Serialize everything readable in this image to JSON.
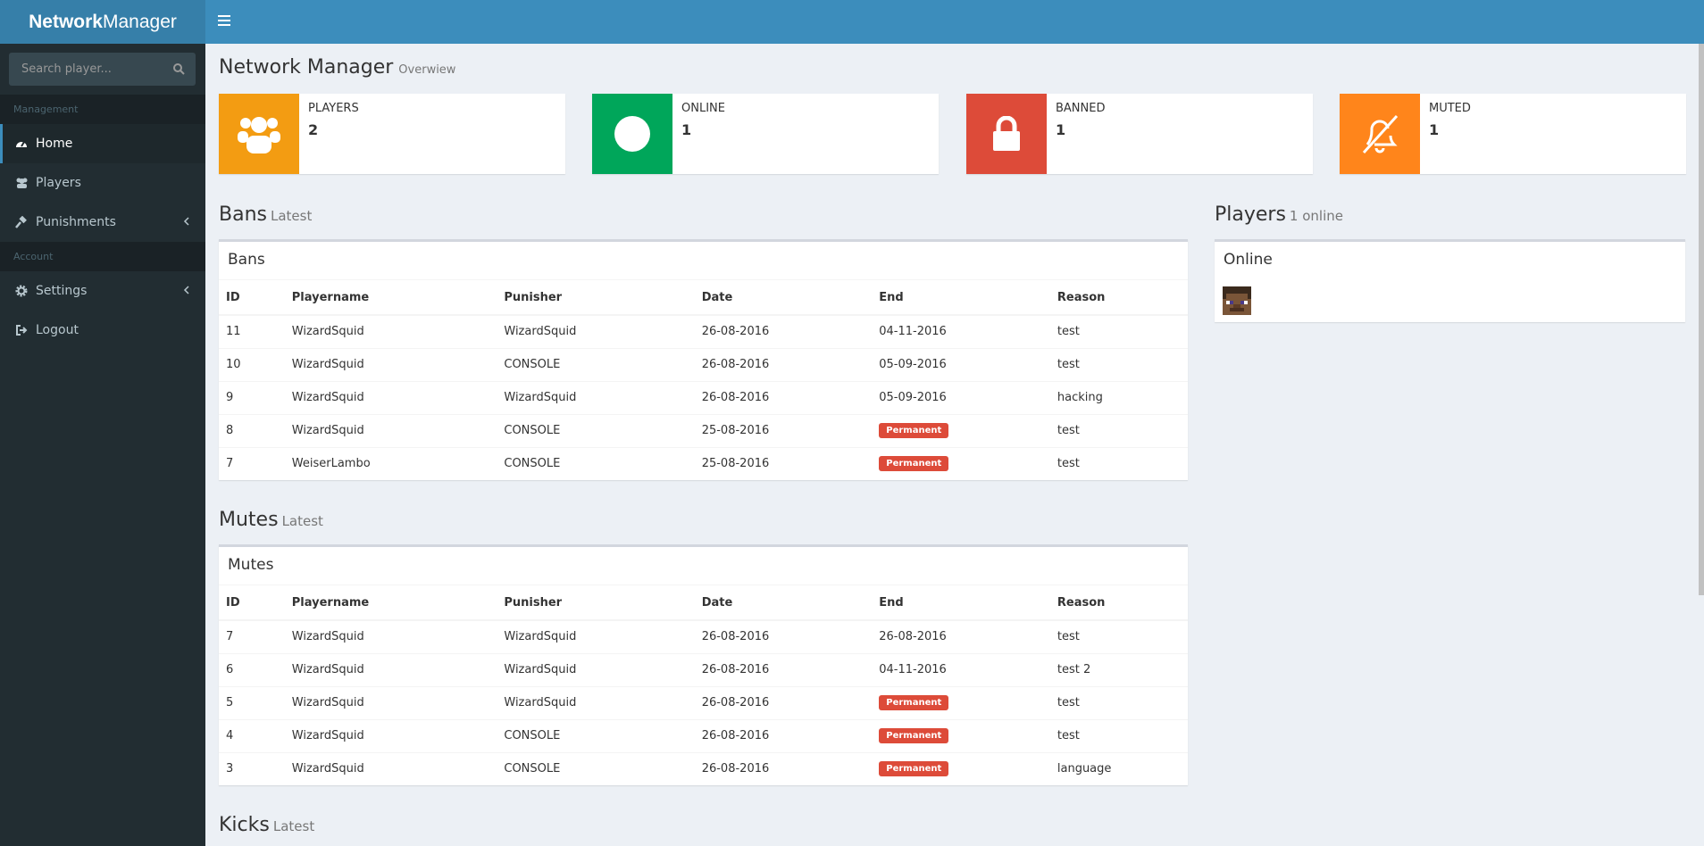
{
  "header": {
    "brand_bold": "Network",
    "brand_light": "Manager"
  },
  "sidebar": {
    "search_placeholder": "Search player...",
    "sections": [
      {
        "title": "Management",
        "items": [
          "Home",
          "Players",
          "Punishments"
        ]
      },
      {
        "title": "Account",
        "items": [
          "Settings",
          "Logout"
        ]
      }
    ]
  },
  "page": {
    "title": "Network Manager",
    "subtitle": "Overwiew"
  },
  "info_boxes": [
    {
      "label": "PLAYERS",
      "value": 2,
      "color": "#f39c12"
    },
    {
      "label": "ONLINE",
      "value": 1,
      "color": "#00a65a"
    },
    {
      "label": "BANNED",
      "value": 1,
      "color": "#dd4b39"
    },
    {
      "label": "MUTED",
      "value": 1,
      "color": "#ff851b"
    }
  ],
  "bans": {
    "heading": "Bans",
    "heading_small": "Latest",
    "box_title": "Bans",
    "columns": [
      "ID",
      "Playername",
      "Punisher",
      "Date",
      "End",
      "Reason"
    ],
    "rows": [
      [
        11,
        "WizardSquid",
        "WizardSquid",
        "26-08-2016",
        "04-11-2016",
        "test"
      ],
      [
        10,
        "WizardSquid",
        "CONSOLE",
        "26-08-2016",
        "05-09-2016",
        "test"
      ],
      [
        9,
        "WizardSquid",
        "WizardSquid",
        "26-08-2016",
        "05-09-2016",
        "hacking"
      ],
      [
        8,
        "WizardSquid",
        "CONSOLE",
        "25-08-2016",
        {
          "text": "Permanent",
          "badge": true
        },
        "test"
      ],
      [
        7,
        "WeiserLambo",
        "CONSOLE",
        "25-08-2016",
        {
          "text": "Permanent",
          "badge": true
        },
        "test"
      ]
    ]
  },
  "mutes": {
    "heading": "Mutes",
    "heading_small": "Latest",
    "box_title": "Mutes",
    "columns": [
      "ID",
      "Playername",
      "Punisher",
      "Date",
      "End",
      "Reason"
    ],
    "rows": [
      [
        7,
        "WizardSquid",
        "WizardSquid",
        "26-08-2016",
        "26-08-2016",
        "test"
      ],
      [
        6,
        "WizardSquid",
        "WizardSquid",
        "26-08-2016",
        "04-11-2016",
        "test 2"
      ],
      [
        5,
        "WizardSquid",
        "WizardSquid",
        "26-08-2016",
        {
          "text": "Permanent",
          "badge": true
        },
        "test"
      ],
      [
        4,
        "WizardSquid",
        "CONSOLE",
        "26-08-2016",
        {
          "text": "Permanent",
          "badge": true
        },
        "test"
      ],
      [
        3,
        "WizardSquid",
        "CONSOLE",
        "26-08-2016",
        {
          "text": "Permanent",
          "badge": true
        },
        "language"
      ]
    ]
  },
  "kicks": {
    "heading": "Kicks",
    "heading_small": "Latest"
  },
  "players_panel": {
    "heading": "Players",
    "heading_small": "1 online",
    "box_title": "Online"
  }
}
